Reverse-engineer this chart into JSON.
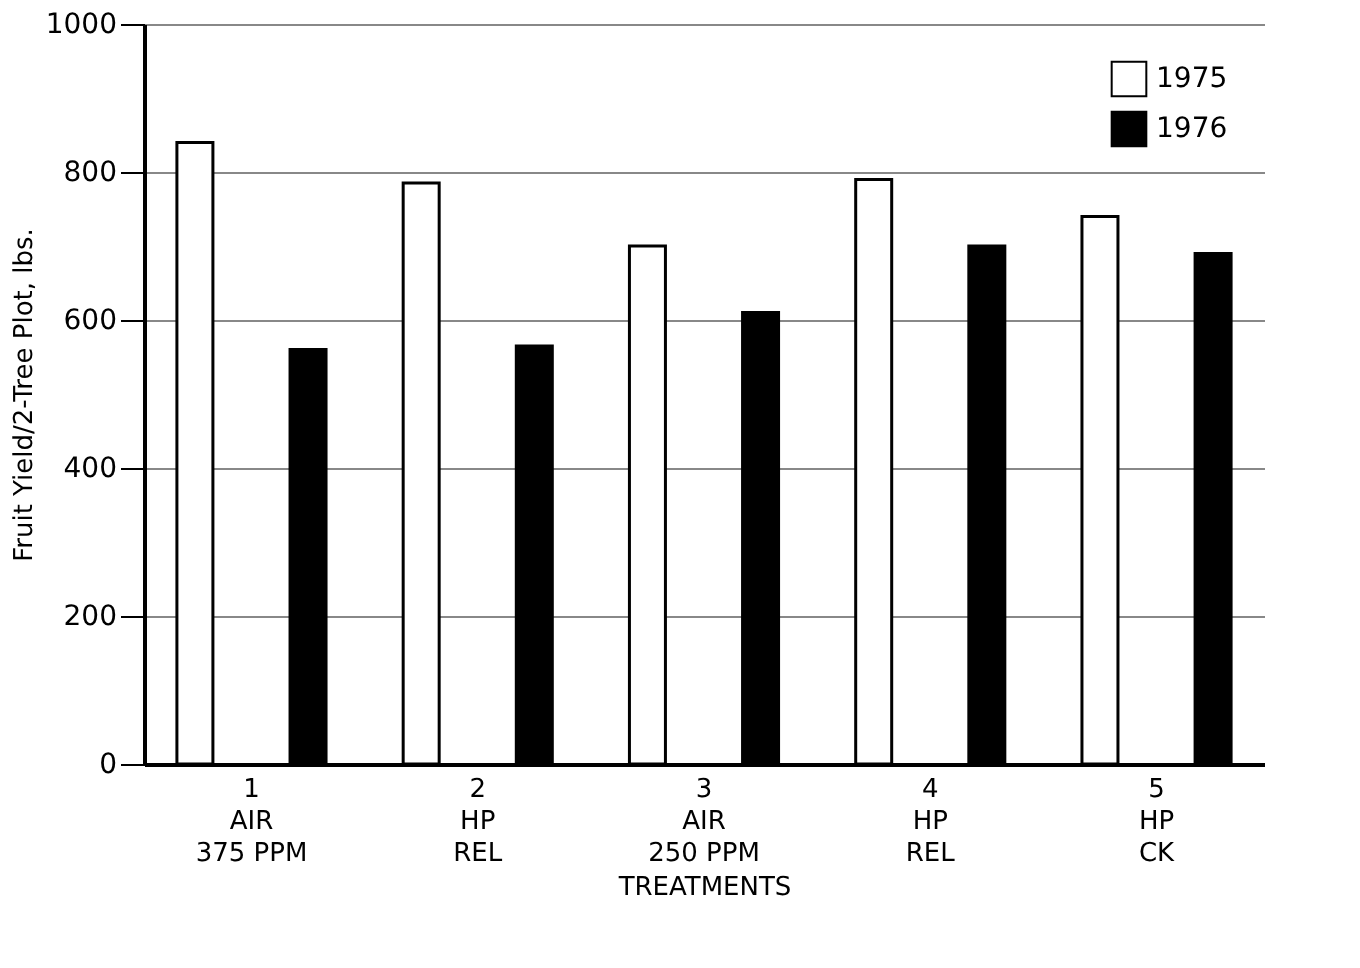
{
  "chart_data": {
    "type": "bar",
    "xlabel": "TREATMENTS",
    "ylabel": "Fruit Yield/2-Tree Plot, lbs.",
    "categories": [
      "1\nAIR\n375 PPM",
      "2\nHP\nREL",
      "3\nAIR\n250 PPM",
      "4\nHP\nREL",
      "5\nHP\nCK"
    ],
    "series": [
      {
        "name": "1975",
        "color": "#ffffff",
        "values": [
          840,
          785,
          700,
          790,
          740
        ]
      },
      {
        "name": "1976",
        "color": "#000000",
        "values": [
          560,
          565,
          610,
          700,
          690
        ]
      }
    ],
    "ylim": [
      0,
      1000
    ],
    "yticks": [
      0,
      200,
      400,
      600,
      800,
      1000
    ],
    "grid": "y",
    "legend": "top right"
  }
}
